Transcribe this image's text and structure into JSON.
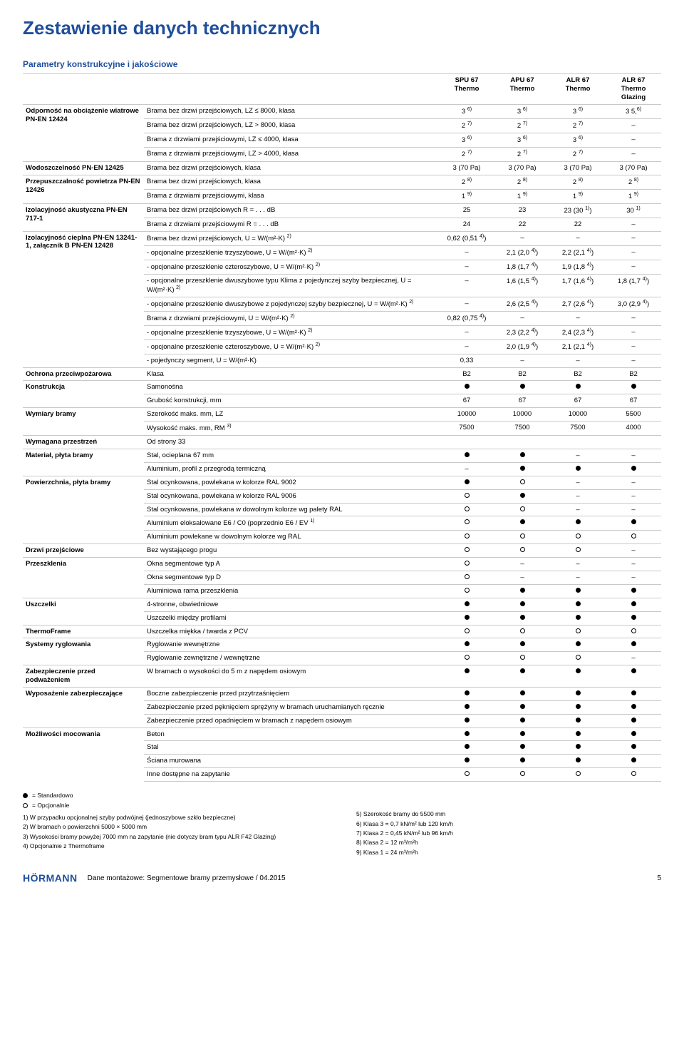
{
  "title": "Zestawienie danych technicznych",
  "section_header": "Parametry konstrukcyjne i jakościowe",
  "columns": [
    "SPU 67 Thermo",
    "APU 67 Thermo",
    "ALR 67 Thermo",
    "ALR 67 Thermo Glazing"
  ],
  "groups": [
    {
      "label": "Odporność na obciążenie wiatrowe PN-EN 12424",
      "rows": [
        {
          "d": "Brama bez drzwi przejściowych, LZ ≤ 8000, klasa",
          "v": [
            "3 6)",
            "3 6)",
            "3 6)",
            "3 5,6)"
          ]
        },
        {
          "d": "Brama bez drzwi przejściowych, LZ > 8000, klasa",
          "v": [
            "2 7)",
            "2 7)",
            "2 7)",
            "–"
          ]
        },
        {
          "d": "Brama z drzwiami przejściowymi, LZ ≤ 4000, klasa",
          "v": [
            "3 6)",
            "3 6)",
            "3 6)",
            "–"
          ]
        },
        {
          "d": "Brama z drzwiami przejściowymi, LZ > 4000, klasa",
          "v": [
            "2 7)",
            "2 7)",
            "2 7)",
            "–"
          ]
        }
      ]
    },
    {
      "label": "Wodoszczelność PN-EN 12425",
      "rows": [
        {
          "d": "Brama bez drzwi przejściowych, klasa",
          "v": [
            "3 (70 Pa)",
            "3 (70 Pa)",
            "3 (70 Pa)",
            "3 (70 Pa)"
          ]
        }
      ]
    },
    {
      "label": "Przepuszczalność powietrza PN-EN 12426",
      "rows": [
        {
          "d": "Brama bez drzwi przejściowych, klasa",
          "v": [
            "2 8)",
            "2 8)",
            "2 8)",
            "2 8)"
          ]
        },
        {
          "d": "Brama z drzwiami przejściowymi, klasa",
          "v": [
            "1 9)",
            "1 9)",
            "1 9)",
            "1 9)"
          ]
        }
      ]
    },
    {
      "label": "Izolacyjność akustyczna PN-EN 717-1",
      "rows": [
        {
          "d": "Brama bez drzwi przejściowych R = . . . dB",
          "v": [
            "25",
            "23",
            "23 (30 1))",
            "30 1)"
          ]
        },
        {
          "d": "Brama z drzwiami przejściowymi R = . . . dB",
          "v": [
            "24",
            "22",
            "22",
            "–"
          ]
        }
      ]
    },
    {
      "label": "Izolacyjność cieplna PN-EN 13241-1, załącznik B PN-EN 12428",
      "rows": [
        {
          "d": "Brama bez drzwi przejściowych, U = W/(m²·K) 2)",
          "v": [
            "0,62 (0,51 4))",
            "–",
            "–",
            "–"
          ]
        },
        {
          "d": "- opcjonalne przeszklenie trzyszybowe, U = W/(m²·K) 2)",
          "v": [
            "–",
            "2,1 (2,0 4))",
            "2,2 (2,1 4))",
            "–"
          ]
        },
        {
          "d": "- opcjonalne przeszklenie czteroszybowe, U = W/(m²·K) 2)",
          "v": [
            "–",
            "1,8 (1,7 4))",
            "1,9 (1,8 4))",
            "–"
          ]
        },
        {
          "d": "- opcjonalne przeszklenie dwuszybowe typu Klima z pojedynczej szyby bezpiecznej, U = W/(m²·K) 2)",
          "v": [
            "–",
            "1,6 (1,5 4))",
            "1,7 (1,6 4))",
            "1,8 (1,7 4))"
          ]
        },
        {
          "d": "- opcjonalne przeszklenie dwuszybowe z pojedynczej szyby bezpiecznej, U = W/(m²·K) 2)",
          "v": [
            "–",
            "2,6 (2,5 4))",
            "2,7 (2,6 4))",
            "3,0 (2,9 4))"
          ]
        },
        {
          "d": "Brama z drzwiami przejściowymi, U = W/(m²·K) 2)",
          "v": [
            "0,82 (0,75 4))",
            "–",
            "–",
            "–"
          ]
        },
        {
          "d": "- opcjonalne przeszklenie trzyszybowe, U = W/(m²·K) 2)",
          "v": [
            "–",
            "2,3 (2,2 4))",
            "2,4 (2,3 4))",
            "–"
          ]
        },
        {
          "d": "- opcjonalne przeszklenie czteroszybowe, U = W/(m²·K) 2)",
          "v": [
            "–",
            "2,0 (1,9 4))",
            "2,1 (2,1 4))",
            "–"
          ]
        },
        {
          "d": "- pojedynczy segment, U = W/(m²·K)",
          "v": [
            "0,33",
            "–",
            "–",
            "–"
          ]
        }
      ]
    },
    {
      "label": "Ochrona przeciwpożarowa",
      "rows": [
        {
          "d": "Klasa",
          "v": [
            "B2",
            "B2",
            "B2",
            "B2"
          ]
        }
      ]
    },
    {
      "label": "Konstrukcja",
      "rows": [
        {
          "d": "Samonośna",
          "v": [
            "●",
            "●",
            "●",
            "●"
          ]
        },
        {
          "d": "Grubość konstrukcji, mm",
          "v": [
            "67",
            "67",
            "67",
            "67"
          ]
        }
      ]
    },
    {
      "label": "Wymiary bramy",
      "rows": [
        {
          "d": "Szerokość maks. mm, LZ",
          "v": [
            "10000",
            "10000",
            "10000",
            "5500"
          ]
        },
        {
          "d": "Wysokość maks. mm, RM 3)",
          "v": [
            "7500",
            "7500",
            "7500",
            "4000"
          ]
        }
      ]
    },
    {
      "label": "Wymagana przestrzeń",
      "rows": [
        {
          "d": "Od strony 33",
          "v": [
            "",
            "",
            "",
            ""
          ]
        }
      ]
    },
    {
      "label": "Materiał, płyta bramy",
      "rows": [
        {
          "d": "Stal, ocieplana 67 mm",
          "v": [
            "●",
            "●",
            "–",
            "–"
          ]
        },
        {
          "d": "Aluminium, profil z przegrodą termiczną",
          "v": [
            "–",
            "●",
            "●",
            "●"
          ]
        }
      ]
    },
    {
      "label": "Powierzchnia, płyta bramy",
      "rows": [
        {
          "d": "Stal ocynkowana, powlekana w kolorze RAL 9002",
          "v": [
            "●",
            "○",
            "–",
            "–"
          ]
        },
        {
          "d": "Stal ocynkowana, powlekana w kolorze RAL 9006",
          "v": [
            "○",
            "●",
            "–",
            "–"
          ]
        },
        {
          "d": "Stal ocynkowana, powlekana w dowolnym kolorze wg palety RAL",
          "v": [
            "○",
            "○",
            "–",
            "–"
          ]
        },
        {
          "d": "Aluminium eloksalowane E6 / C0 (poprzednio E6 / EV 1)",
          "v": [
            "○",
            "●",
            "●",
            "●"
          ]
        },
        {
          "d": "Aluminium powlekane w dowolnym kolorze wg RAL",
          "v": [
            "○",
            "○",
            "○",
            "○"
          ]
        }
      ]
    },
    {
      "label": "Drzwi przejściowe",
      "rows": [
        {
          "d": "Bez wystającego progu",
          "v": [
            "○",
            "○",
            "○",
            "–"
          ]
        }
      ]
    },
    {
      "label": "Przeszklenia",
      "rows": [
        {
          "d": "Okna segmentowe typ A",
          "v": [
            "○",
            "–",
            "–",
            "–"
          ]
        },
        {
          "d": "Okna segmentowe typ D",
          "v": [
            "○",
            "–",
            "–",
            "–"
          ]
        },
        {
          "d": "Aluminiowa rama przeszklenia",
          "v": [
            "○",
            "●",
            "●",
            "●"
          ]
        }
      ]
    },
    {
      "label": "Uszczelki",
      "rows": [
        {
          "d": "4-stronne, obwiedniowe",
          "v": [
            "●",
            "●",
            "●",
            "●"
          ]
        },
        {
          "d": "Uszczelki między profilami",
          "v": [
            "●",
            "●",
            "●",
            "●"
          ]
        }
      ]
    },
    {
      "label": "ThermoFrame",
      "rows": [
        {
          "d": "Uszczelka miękka / twarda z PCV",
          "v": [
            "○",
            "○",
            "○",
            "○"
          ]
        }
      ]
    },
    {
      "label": "Systemy ryglowania",
      "rows": [
        {
          "d": "Ryglowanie wewnętrzne",
          "v": [
            "●",
            "●",
            "●",
            "●"
          ]
        },
        {
          "d": "Ryglowanie zewnętrzne / wewnętrzne",
          "v": [
            "○",
            "○",
            "○",
            "–"
          ]
        }
      ]
    },
    {
      "label": "Zabezpieczenie przed podważeniem",
      "rows": [
        {
          "d": "W bramach o wysokości do 5 m z napędem osiowym",
          "v": [
            "●",
            "●",
            "●",
            "●"
          ]
        }
      ]
    },
    {
      "label": "Wyposażenie zabezpieczające",
      "rows": [
        {
          "d": "Boczne zabezpieczenie przed przytrzaśnięciem",
          "v": [
            "●",
            "●",
            "●",
            "●"
          ]
        },
        {
          "d": "Zabezpieczenie przed pęknięciem sprężyny w bramach uruchamianych ręcznie",
          "v": [
            "●",
            "●",
            "●",
            "●"
          ]
        },
        {
          "d": "Zabezpieczenie przed opadnięciem w bramach z napędem osiowym",
          "v": [
            "●",
            "●",
            "●",
            "●"
          ]
        }
      ]
    },
    {
      "label": "Możliwości mocowania",
      "rows": [
        {
          "d": "Beton",
          "v": [
            "●",
            "●",
            "●",
            "●"
          ]
        },
        {
          "d": "Stal",
          "v": [
            "●",
            "●",
            "●",
            "●"
          ]
        },
        {
          "d": "Ściana murowana",
          "v": [
            "●",
            "●",
            "●",
            "●"
          ]
        },
        {
          "d": "Inne dostępne na zapytanie",
          "v": [
            "○",
            "○",
            "○",
            "○"
          ]
        }
      ]
    }
  ],
  "legend": {
    "std": "= Standardowo",
    "opt": "= Opcjonalnie",
    "left": [
      "1) W przypadku opcjonalnej szyby podwójnej (jednoszybowe szkło bezpieczne)",
      "2) W bramach o powierzchni 5000 × 5000 mm",
      "3) Wysokości bramy powyżej 7000 mm na zapytanie (nie dotyczy bram typu ALR F42 Glazing)",
      "4) Opcjonalnie z Thermoframe"
    ],
    "right": [
      "5) Szerokość bramy do 5500 mm",
      "6) Klasa 3 = 0,7 kN/m² lub 120 km/h",
      "7) Klasa 2 = 0,45 kN/m² lub 96 km/h",
      "8) Klasa 2 = 12 m³/m²h",
      "9) Klasa 1 = 24 m³/m²h"
    ]
  },
  "footer": {
    "logo": "HÖRMANN",
    "text": "Dane montażowe: Segmentowe bramy przemysłowe / 04.2015",
    "page": "5"
  }
}
